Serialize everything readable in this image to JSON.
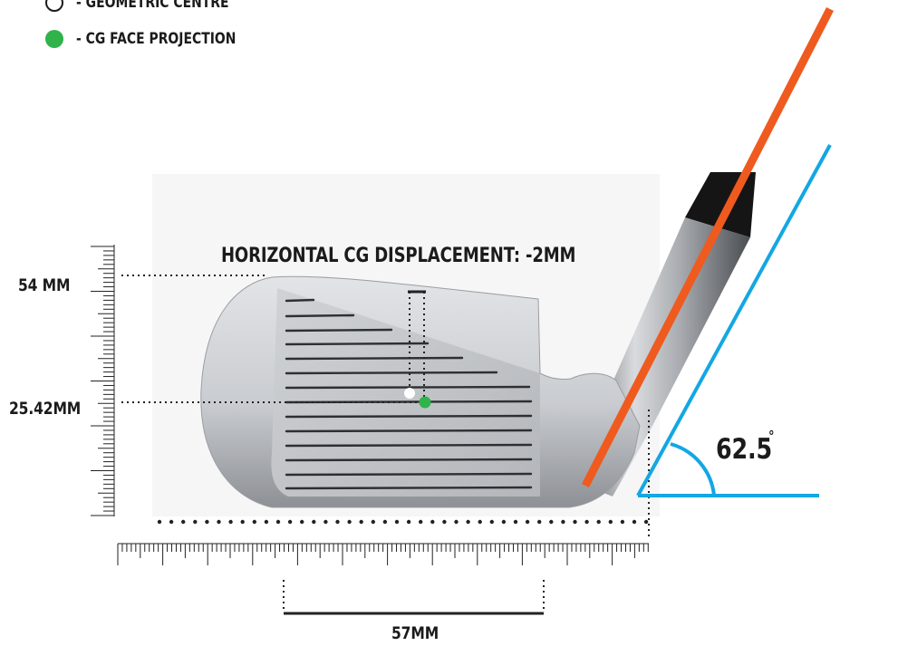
{
  "legend": {
    "geometric_centre_label": "- GEOMETRIC CENTRE",
    "cg_face_projection_label": "- CG FACE PROJECTION"
  },
  "annotations": {
    "horizontal_cg_displacement": "HORIZONTAL CG DISPLACEMENT: -2MM",
    "face_height": "54 MM",
    "cg_height": "25.42MM",
    "face_width": "57MM",
    "lie_angle_value": "62.5",
    "lie_angle_degree": "°"
  },
  "colors": {
    "shaft_line": "#ef5a1f",
    "lie_angle": "#13a7e3",
    "cg_point": "#2fb34a",
    "geometric_centre": "#ffffff",
    "text": "#1b1b1b"
  }
}
